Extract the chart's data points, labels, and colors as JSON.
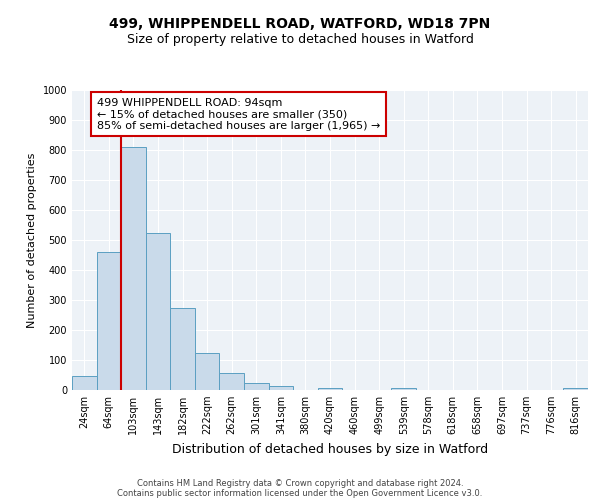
{
  "title": "499, WHIPPENDELL ROAD, WATFORD, WD18 7PN",
  "subtitle": "Size of property relative to detached houses in Watford",
  "xlabel": "Distribution of detached houses by size in Watford",
  "ylabel": "Number of detached properties",
  "bar_labels": [
    "24sqm",
    "64sqm",
    "103sqm",
    "143sqm",
    "182sqm",
    "222sqm",
    "262sqm",
    "301sqm",
    "341sqm",
    "380sqm",
    "420sqm",
    "460sqm",
    "499sqm",
    "539sqm",
    "578sqm",
    "618sqm",
    "658sqm",
    "697sqm",
    "737sqm",
    "776sqm",
    "816sqm"
  ],
  "bar_values": [
    47,
    460,
    810,
    525,
    275,
    125,
    58,
    22,
    12,
    0,
    8,
    0,
    0,
    8,
    0,
    0,
    0,
    0,
    0,
    0,
    8
  ],
  "bar_color": "#c9daea",
  "bar_edge_color": "#5b9fc2",
  "vline_color": "#cc0000",
  "vline_pos": 1.5,
  "ylim": [
    0,
    1000
  ],
  "yticks": [
    0,
    100,
    200,
    300,
    400,
    500,
    600,
    700,
    800,
    900,
    1000
  ],
  "annotation_text": "499 WHIPPENDELL ROAD: 94sqm\n← 15% of detached houses are smaller (350)\n85% of semi-detached houses are larger (1,965) →",
  "annotation_box_facecolor": "#ffffff",
  "annotation_box_edgecolor": "#cc0000",
  "footer_line1": "Contains HM Land Registry data © Crown copyright and database right 2024.",
  "footer_line2": "Contains public sector information licensed under the Open Government Licence v3.0.",
  "bg_color": "#ffffff",
  "axes_bg_color": "#edf2f7",
  "grid_color": "#ffffff",
  "title_fontsize": 10,
  "subtitle_fontsize": 9,
  "ylabel_fontsize": 8,
  "xlabel_fontsize": 9,
  "tick_fontsize": 7,
  "footer_fontsize": 6,
  "annotation_fontsize": 8
}
